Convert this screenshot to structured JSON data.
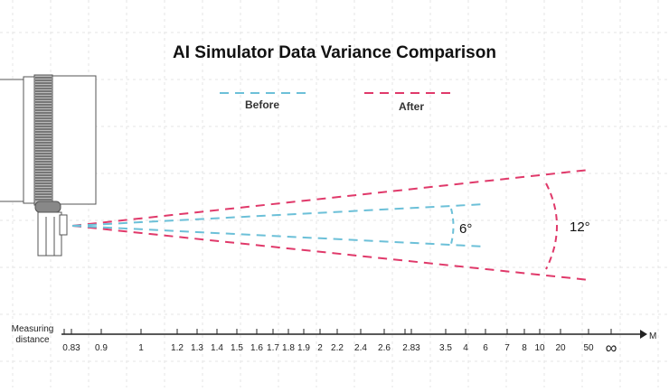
{
  "chart_data": {
    "type": "line",
    "title": "AI Simulator Data Variance Comparison",
    "legend": [
      {
        "name": "Before",
        "color": "#6cc0d8",
        "angle_deg": 6,
        "angle_label": "6°"
      },
      {
        "name": "After",
        "color": "#e0396a",
        "angle_deg": 12,
        "angle_label": "12°"
      }
    ],
    "legend_placement": "top-center",
    "xlabel": "Measuring distance",
    "xlabel_lines": [
      "Measuring",
      "distance"
    ],
    "x_unit": "M",
    "x_ticks": [
      "0.83",
      "0.9",
      "1",
      "1.2",
      "1.3",
      "1.4",
      "1.5",
      "1.6",
      "1.7",
      "1.8",
      "1.9",
      "2",
      "2.2",
      "2.4",
      "2.6",
      "2.83",
      "3.5",
      "4",
      "6",
      "7",
      "8",
      "10",
      "20",
      "50",
      "∞"
    ],
    "grid": true
  }
}
